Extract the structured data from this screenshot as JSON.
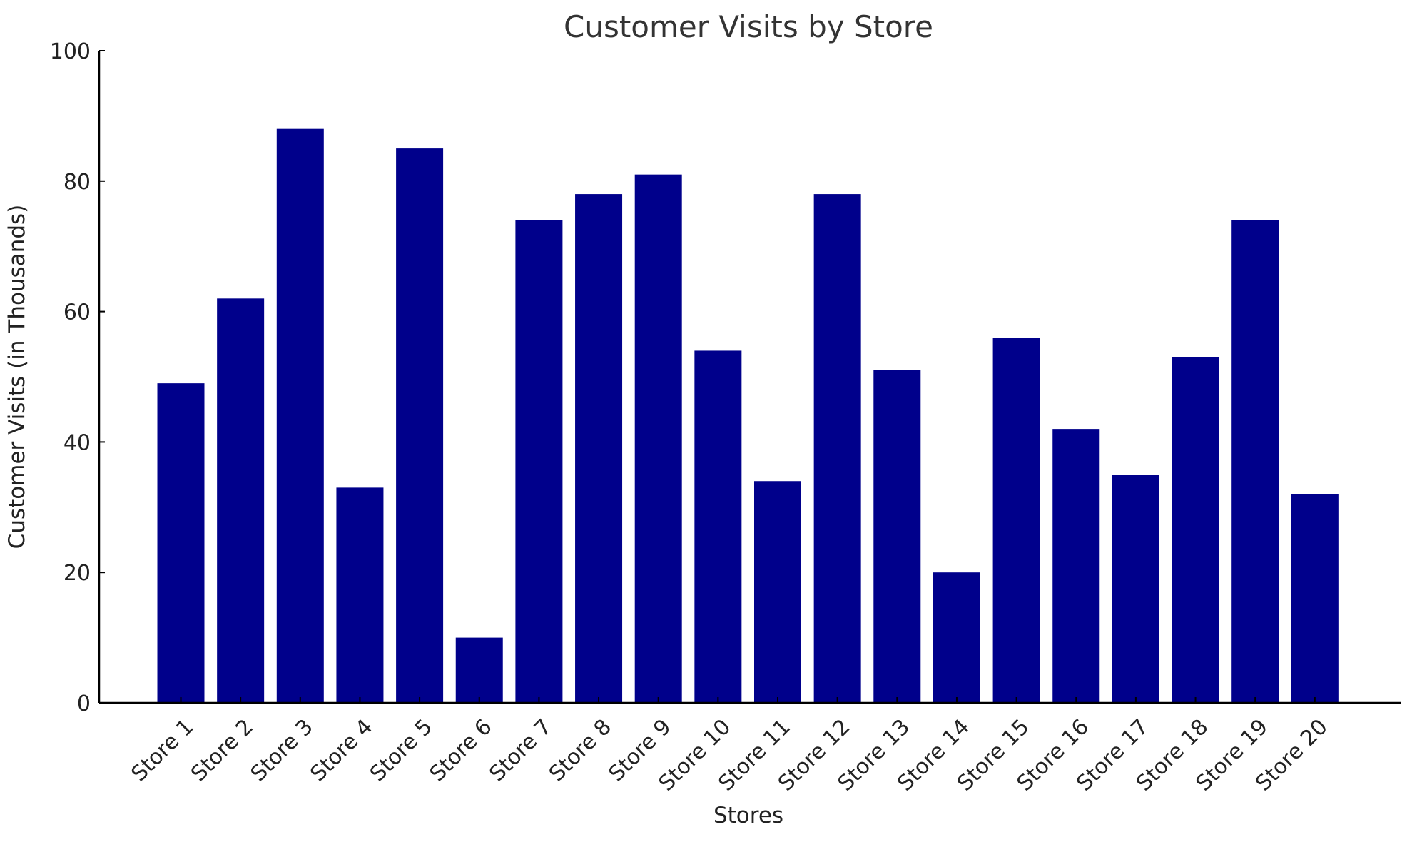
{
  "chart_data": {
    "type": "bar",
    "title": "Customer Visits by Store",
    "xlabel": "Stores",
    "ylabel": "Customer Visits (in Thousands)",
    "categories": [
      "Store 1",
      "Store 2",
      "Store 3",
      "Store 4",
      "Store 5",
      "Store 6",
      "Store 7",
      "Store 8",
      "Store 9",
      "Store 10",
      "Store 11",
      "Store 12",
      "Store 13",
      "Store 14",
      "Store 15",
      "Store 16",
      "Store 17",
      "Store 18",
      "Store 19",
      "Store 20"
    ],
    "values": [
      49,
      62,
      88,
      33,
      85,
      10,
      74,
      78,
      81,
      54,
      34,
      78,
      51,
      20,
      56,
      42,
      35,
      53,
      74,
      32
    ],
    "ylim": [
      0,
      100
    ],
    "yticks": [
      0,
      20,
      40,
      60,
      80,
      100
    ],
    "grid": false,
    "colors": {
      "bar": "#00008B",
      "axis": "#000000",
      "title": "#333333"
    }
  }
}
